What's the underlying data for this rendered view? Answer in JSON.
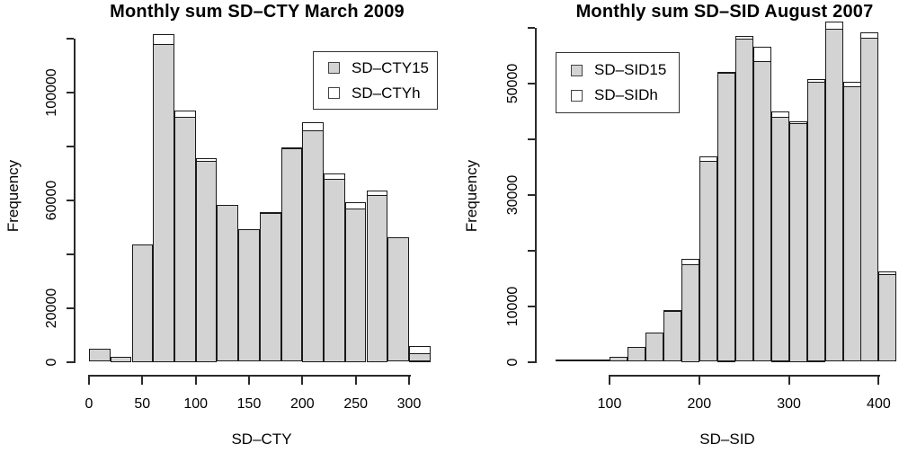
{
  "window": {
    "background": "#ffffff"
  },
  "colors": {
    "bar_gray": "#d3d3d3",
    "bar_white": "#ffffff",
    "bar_border": "#1a1a1a",
    "axis": "#2a2a2a",
    "text": "#000000"
  },
  "chart_data": [
    {
      "type": "bar",
      "subtype": "overlaid-histograms",
      "title": "Monthly sum SD–CTY March 2009",
      "xlabel": "SD–CTY",
      "ylabel": "Frequency",
      "xlim": [
        0,
        320
      ],
      "ylim": [
        0,
        120000
      ],
      "grid": false,
      "legend_position": "top-right",
      "bin_edges": [
        0,
        20,
        40,
        60,
        80,
        100,
        120,
        140,
        160,
        180,
        200,
        220,
        240,
        260,
        280,
        300,
        320
      ],
      "x_ticks": [
        0,
        50,
        100,
        150,
        200,
        250,
        300
      ],
      "y_ticks": [
        0,
        20000,
        40000,
        60000,
        80000,
        100000,
        120000
      ],
      "y_tick_labeled": [
        0,
        20000,
        60000,
        100000
      ],
      "series": [
        {
          "name": "SD–CTY15",
          "fill": "#d3d3d3",
          "values": [
            4900,
            2000,
            43500,
            118000,
            91000,
            74500,
            58200,
            49200,
            55300,
            79300,
            86000,
            68000,
            57000,
            62000,
            46200,
            3200
          ]
        },
        {
          "name": "SD–CTYh",
          "fill": "#ffffff",
          "values": [
            4900,
            2000,
            43500,
            121500,
            93200,
            75500,
            58200,
            49200,
            55600,
            79600,
            88700,
            70000,
            59100,
            63600,
            46200,
            6000
          ]
        }
      ]
    },
    {
      "type": "bar",
      "subtype": "overlaid-histograms",
      "title": "Monthly sum SD–SID August 2007",
      "xlabel": "SD–SID",
      "ylabel": "Frequency",
      "xlim": [
        40,
        420
      ],
      "ylim": [
        0,
        60000
      ],
      "grid": false,
      "legend_position": "top-left",
      "bin_edges": [
        40,
        60,
        80,
        100,
        120,
        140,
        160,
        180,
        200,
        220,
        240,
        260,
        280,
        300,
        320,
        340,
        360,
        380,
        400,
        420
      ],
      "x_ticks": [
        100,
        200,
        300,
        400
      ],
      "y_ticks": [
        0,
        10000,
        20000,
        30000,
        40000,
        50000,
        60000
      ],
      "y_tick_labeled": [
        0,
        10000,
        30000,
        50000
      ],
      "series": [
        {
          "name": "SD–SID15",
          "fill": "#d3d3d3",
          "values": [
            100,
            250,
            450,
            900,
            2600,
            5200,
            9100,
            17500,
            36000,
            51900,
            58000,
            53900,
            43900,
            42900,
            50300,
            59800,
            49500,
            58100,
            15700
          ]
        },
        {
          "name": "SD–SIDh",
          "fill": "#ffffff",
          "values": [
            100,
            250,
            450,
            900,
            2700,
            5300,
            9300,
            18400,
            36800,
            52100,
            58400,
            56600,
            45000,
            43200,
            50800,
            61000,
            50300,
            59100,
            16200
          ]
        }
      ]
    }
  ]
}
